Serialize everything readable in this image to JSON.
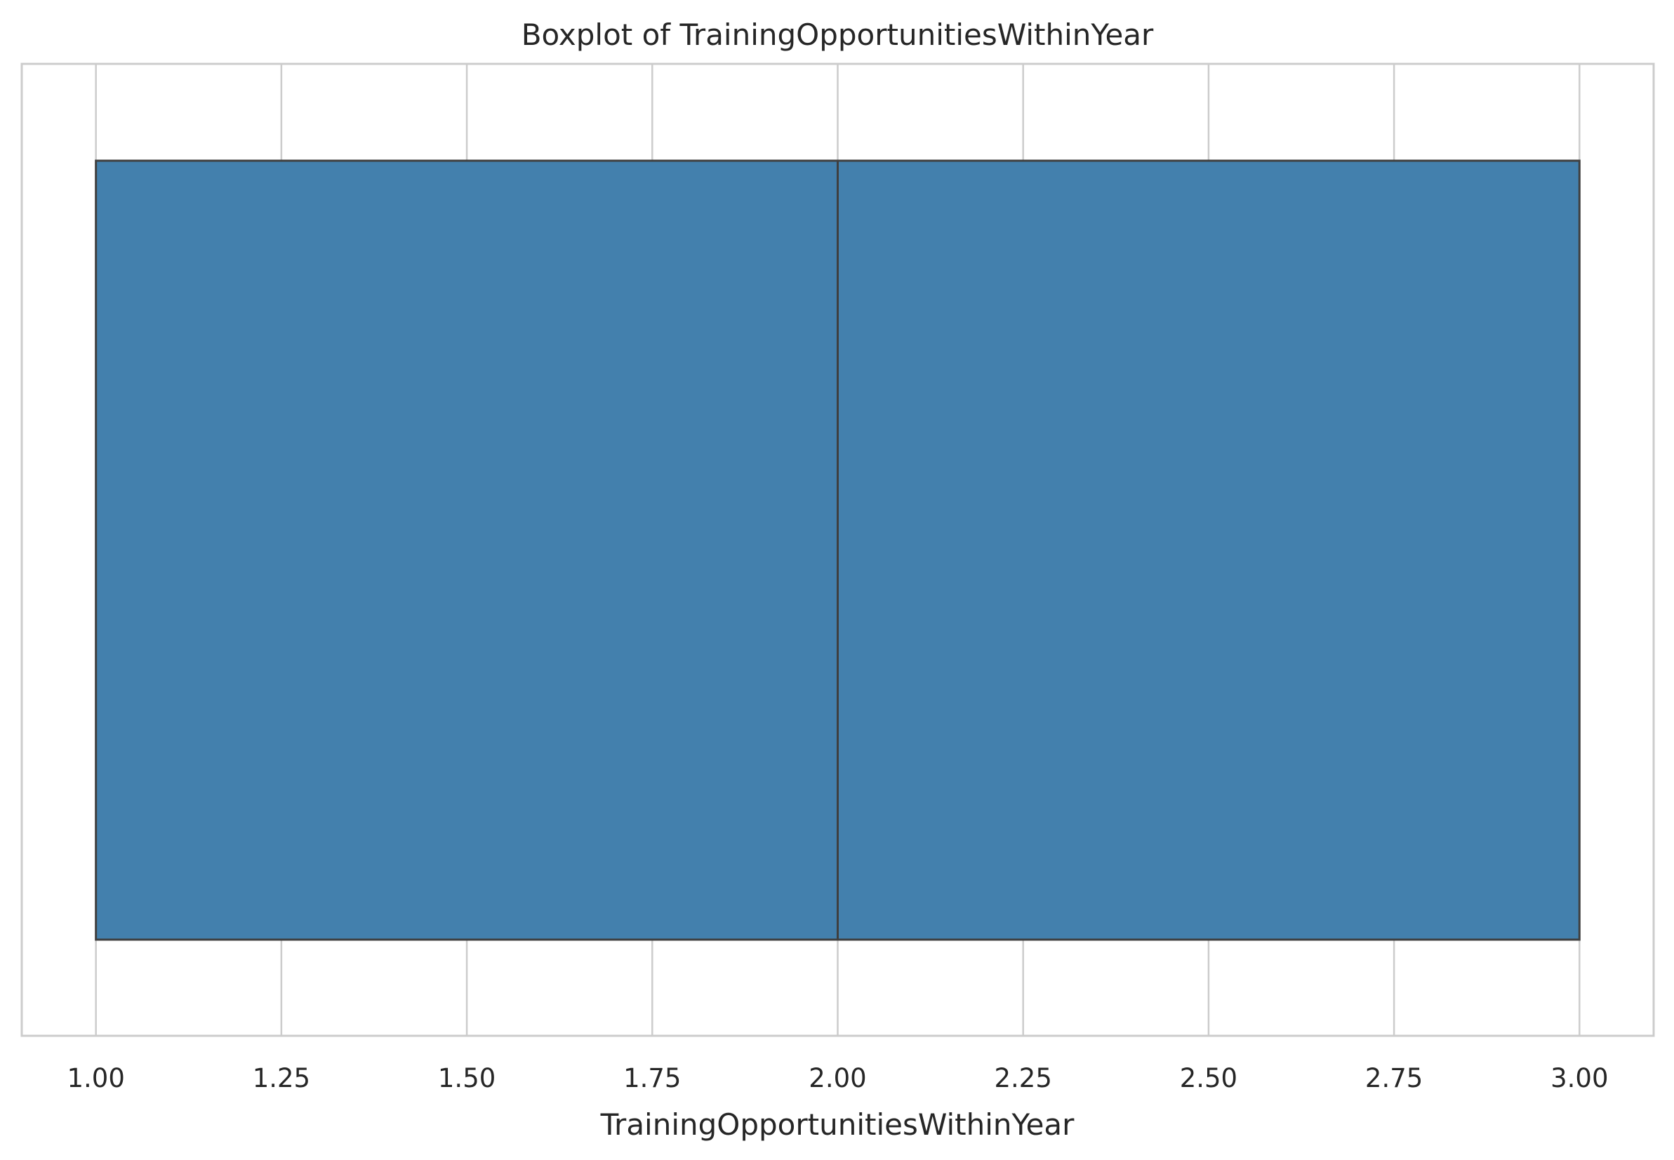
{
  "chart_data": {
    "type": "boxplot",
    "title": "Boxplot of TrainingOpportunitiesWithinYear",
    "xlabel": "TrainingOpportunitiesWithinYear",
    "ylabel": "",
    "orientation": "horizontal",
    "xlim": [
      0.9,
      3.1
    ],
    "xticks": [
      1.0,
      1.25,
      1.5,
      1.75,
      2.0,
      2.25,
      2.5,
      2.75,
      3.0
    ],
    "xtick_labels": [
      "1.00",
      "1.25",
      "1.50",
      "1.75",
      "2.00",
      "2.25",
      "2.50",
      "2.75",
      "3.00"
    ],
    "grid": true,
    "box": {
      "min": 1.0,
      "q1": 1.0,
      "median": 2.0,
      "q3": 3.0,
      "max": 3.0
    },
    "colors": {
      "box_fill": "#4380ad",
      "box_edge": "#3f3f3f",
      "grid": "#cccccc",
      "frame": "#cccccc",
      "text": "#262626"
    }
  }
}
